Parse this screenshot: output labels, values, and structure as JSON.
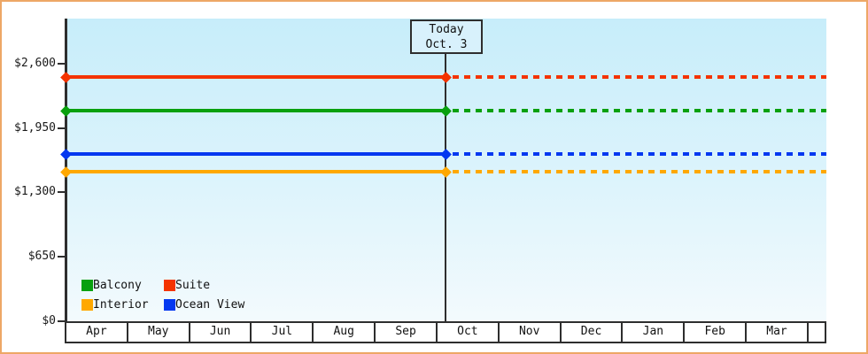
{
  "window": {
    "border_color": "#eda766",
    "background_color": "#ffffff",
    "axis_color": "#2e2e2e",
    "plot_bg_top": "#c7edfa",
    "plot_bg_bottom": "#f3fafd",
    "today_box_fill": "#d8f1fc"
  },
  "chart_data": {
    "type": "line",
    "title": "",
    "x": {
      "unit": "month",
      "categories": [
        "Apr",
        "May",
        "Jun",
        "Jul",
        "Aug",
        "Sep",
        "Oct",
        "Nov",
        "Dec",
        "Jan",
        "Feb",
        "Mar"
      ],
      "trailing_blank_cell": true
    },
    "y": {
      "tick_labels": [
        "$0",
        "$650",
        "$1,300",
        "$1,950",
        "$2,600"
      ],
      "tick_values": [
        0,
        650,
        1300,
        1950,
        2600
      ],
      "axis_max_visible": 3055,
      "grid": false
    },
    "today": {
      "line1": "Today",
      "line2": "Oct. 3",
      "month": "Oct",
      "day": 3
    },
    "series": [
      {
        "name": "Suite",
        "color": "#f43300",
        "value": 2465,
        "style": "solid-until-today-then-dashed"
      },
      {
        "name": "Balcony",
        "color": "#09a00e",
        "value": 2130,
        "style": "solid-until-today-then-dashed"
      },
      {
        "name": "Ocean View",
        "color": "#0438f0",
        "value": 1690,
        "style": "solid-until-today-then-dashed"
      },
      {
        "name": "Interior",
        "color": "#ffa800",
        "value": 1510,
        "style": "solid-until-today-then-dashed"
      }
    ],
    "legend": {
      "position": "bottom-left-inside-plot",
      "rows": [
        [
          "Balcony",
          "Suite"
        ],
        [
          "Interior",
          "Ocean View"
        ]
      ]
    }
  }
}
